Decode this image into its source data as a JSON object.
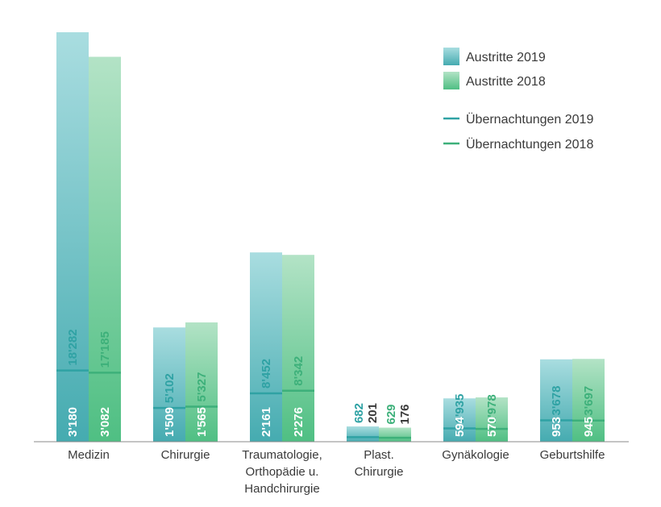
{
  "chart_data": {
    "type": "bar",
    "categories": [
      [
        "Medizin"
      ],
      [
        "Chirurgie"
      ],
      [
        "Traumatologie,",
        "Orthopädie u.",
        "Handchirurgie"
      ],
      [
        "Plast.",
        "Chirurgie"
      ],
      [
        "Gynäkologie"
      ],
      [
        "Geburtshilfe"
      ]
    ],
    "series": [
      {
        "name": "Austritte 2019",
        "values": [
          18282,
          5102,
          8452,
          682,
          1935,
          3678
        ],
        "labels": [
          "18'282",
          "5'102",
          "8'452",
          "682",
          "1'935",
          "3'678"
        ],
        "color": "#6cbfc6"
      },
      {
        "name": "Austritte 2018",
        "values": [
          17185,
          5327,
          8342,
          629,
          1978,
          3697
        ],
        "labels": [
          "17'185",
          "5'327",
          "8'342",
          "629",
          "1'978",
          "3'697"
        ],
        "color": "#7fcf9f"
      }
    ],
    "lines": [
      {
        "name": "Übernachtungen 2019",
        "values": [
          3180,
          1509,
          2161,
          201,
          594,
          953
        ],
        "labels": [
          "3'180",
          "1'509",
          "2'161",
          "201",
          "594",
          "953"
        ],
        "color": "#2fa2a4"
      },
      {
        "name": "Übernachtungen 2018",
        "values": [
          3082,
          1565,
          2276,
          176,
          570,
          945
        ],
        "labels": [
          "3'082",
          "1'565",
          "2'276",
          "176",
          "570",
          "945"
        ],
        "color": "#3db07a"
      }
    ],
    "legend": [
      {
        "label": "Austritte 2019",
        "kind": "box",
        "color": "#6cbfc6"
      },
      {
        "label": "Austritte 2018",
        "kind": "box",
        "color": "#7fcf9f"
      },
      {
        "label": "Übernachtungen 2019",
        "kind": "line",
        "color": "#2fa2a4"
      },
      {
        "label": "Übernachtungen 2018",
        "kind": "line",
        "color": "#3db07a"
      }
    ],
    "legend_position": "top-right",
    "grid": false
  }
}
